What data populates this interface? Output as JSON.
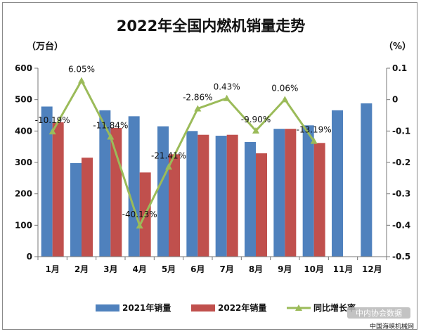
{
  "chart_data": {
    "type": "bar",
    "title": "2022年全国内燃机销量走势",
    "y_left_unit": "（万台）",
    "y_right_unit": "（%）",
    "categories": [
      "1月",
      "2月",
      "3月",
      "4月",
      "5月",
      "6月",
      "7月",
      "8月",
      "9月",
      "10月",
      "11月",
      "12月"
    ],
    "ylim_left": [
      0,
      600
    ],
    "yticks_left": [
      "0",
      "100",
      "200",
      "300",
      "400",
      "500",
      "600"
    ],
    "ylim_right": [
      -0.5,
      0.1
    ],
    "yticks_right": [
      "-0.5",
      "-0.4",
      "-0.3",
      "-0.2",
      "-0.1",
      "0",
      "0.1"
    ],
    "grid": false,
    "legend_position": "bottom",
    "series": [
      {
        "name": "2021年销量",
        "type": "bar",
        "axis": "left",
        "color": "#4f81bd",
        "values": [
          478,
          298,
          466,
          447,
          415,
          400,
          385,
          365,
          407,
          418,
          466,
          488
        ]
      },
      {
        "name": "2022年销量",
        "type": "bar",
        "axis": "left",
        "color": "#c0504d",
        "values": [
          428,
          315,
          410,
          268,
          326,
          388,
          388,
          329,
          407,
          362,
          null,
          null
        ]
      },
      {
        "name": "同比增长率",
        "type": "line",
        "axis": "right",
        "color": "#9bbb59",
        "values": [
          -0.1019,
          0.0605,
          -0.1184,
          -0.4013,
          -0.2141,
          -0.0286,
          0.0043,
          -0.099,
          0.0006,
          -0.1319,
          null,
          null
        ],
        "labels": [
          "-10.19%",
          "6.05%",
          "-11.84%",
          "-40.13%",
          "-21.41%",
          "-2.86%",
          "0.43%",
          "-9.90%",
          "0.06%",
          "-13.19%",
          null,
          null
        ]
      }
    ]
  },
  "watermark": "中内协会数据",
  "source_text": "中国海峡机械网"
}
